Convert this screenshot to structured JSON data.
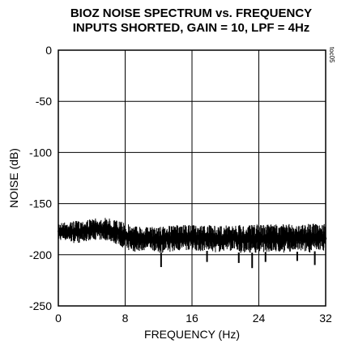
{
  "chart_data": {
    "type": "line",
    "title": "BIOZ NOISE SPECTRUM vs. FREQUENCY",
    "subtitle": "INPUTS SHORTED, GAIN = 10, LPF = 4Hz",
    "xlabel": "FREQUENCY (Hz)",
    "ylabel": "NOISE (dB)",
    "figure_code": "toc05",
    "xlim": [
      0,
      32
    ],
    "ylim": [
      -250,
      0
    ],
    "x_ticks": [
      0,
      8,
      16,
      24,
      32
    ],
    "y_ticks": [
      0,
      -50,
      -100,
      -150,
      -200,
      -250
    ],
    "x_tick_labels": [
      "0",
      "8",
      "16",
      "24",
      "32"
    ],
    "y_tick_labels": [
      "0",
      "-50",
      "-100",
      "-150",
      "-200",
      "-250"
    ],
    "grid": true,
    "line_color": "#000000",
    "series": [
      {
        "x": [
          0,
          1,
          2,
          3,
          4,
          5,
          6,
          7,
          8,
          9,
          10,
          11,
          12,
          13,
          14,
          15,
          16,
          17,
          18,
          19,
          20,
          21,
          22,
          23,
          24,
          25,
          26,
          27,
          28,
          29,
          30,
          31,
          32
        ],
        "upper": [
          -168,
          -168,
          -167,
          -166,
          -165,
          -164,
          -164,
          -166,
          -169,
          -171,
          -172,
          -173,
          -172,
          -172,
          -171,
          -171,
          -171,
          -171,
          -171,
          -172,
          -171,
          -171,
          -171,
          -171,
          -170,
          -170,
          -170,
          -170,
          -170,
          -170,
          -169,
          -170,
          -170
        ],
        "lower": [
          -186,
          -186,
          -189,
          -188,
          -185,
          -186,
          -186,
          -190,
          -194,
          -198,
          -196,
          -195,
          -198,
          -198,
          -196,
          -196,
          -195,
          -197,
          -196,
          -198,
          -196,
          -196,
          -199,
          -198,
          -198,
          -197,
          -198,
          -198,
          -197,
          -197,
          -198,
          -196,
          -196
        ],
        "spikes": [
          {
            "x": 12.3,
            "y": -212
          },
          {
            "x": 17.8,
            "y": -207
          },
          {
            "x": 21.6,
            "y": -208
          },
          {
            "x": 23.2,
            "y": -213
          },
          {
            "x": 24.8,
            "y": -207
          },
          {
            "x": 28.6,
            "y": -206
          },
          {
            "x": 30.7,
            "y": -210
          }
        ]
      }
    ]
  }
}
